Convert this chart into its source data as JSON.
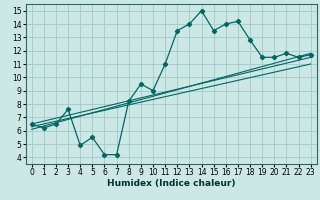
{
  "xlabel": "Humidex (Indice chaleur)",
  "ylabel": "",
  "bg_color": "#cce8e4",
  "grid_color": "#aacccc",
  "line_color": "#006666",
  "xlim": [
    -0.5,
    23.5
  ],
  "ylim": [
    3.5,
    15.5
  ],
  "xticks": [
    0,
    1,
    2,
    3,
    4,
    5,
    6,
    7,
    8,
    9,
    10,
    11,
    12,
    13,
    14,
    15,
    16,
    17,
    18,
    19,
    20,
    21,
    22,
    23
  ],
  "yticks": [
    4,
    5,
    6,
    7,
    8,
    9,
    10,
    11,
    12,
    13,
    14,
    15
  ],
  "main_x": [
    0,
    1,
    2,
    3,
    4,
    5,
    6,
    7,
    8,
    9,
    10,
    11,
    12,
    13,
    14,
    15,
    16,
    17,
    18,
    19,
    20,
    21,
    22,
    23
  ],
  "main_y": [
    6.5,
    6.2,
    6.5,
    7.6,
    4.9,
    5.5,
    4.2,
    4.2,
    8.2,
    9.5,
    9.0,
    11.0,
    13.5,
    14.0,
    15.0,
    13.5,
    14.0,
    14.2,
    12.8,
    11.5,
    11.5,
    11.8,
    11.5,
    11.7
  ],
  "line2_x": [
    0,
    23
  ],
  "line2_y": [
    6.5,
    11.5
  ],
  "line3_x": [
    0,
    23
  ],
  "line3_y": [
    6.3,
    11.0
  ],
  "line4_x": [
    0,
    23
  ],
  "line4_y": [
    6.1,
    11.8
  ]
}
